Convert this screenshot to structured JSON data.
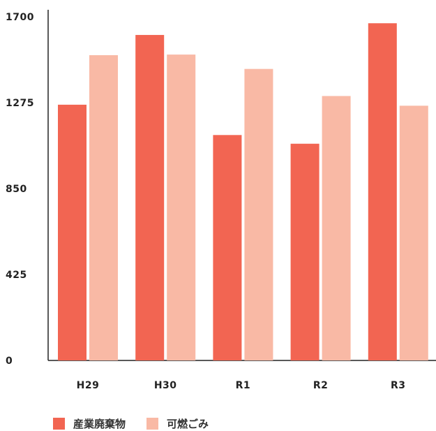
{
  "chart_data": {
    "type": "bar",
    "categories": [
      "H29",
      "H30",
      "R1",
      "R2",
      "R3"
    ],
    "series": [
      {
        "name": "産業廃棄物",
        "color": "#f26552",
        "values": [
          1265,
          1610,
          1115,
          1072,
          1668
        ]
      },
      {
        "name": "可燃ごみ",
        "color": "#f9b9a5",
        "values": [
          1510,
          1513,
          1442,
          1308,
          1260
        ]
      }
    ],
    "yticks": [
      "0",
      "425",
      "850",
      "1275",
      "1700"
    ],
    "ylim": [
      0,
      1700
    ],
    "grid": false,
    "legend_position": "bottom-left",
    "title": "",
    "xlabel": "",
    "ylabel": ""
  }
}
